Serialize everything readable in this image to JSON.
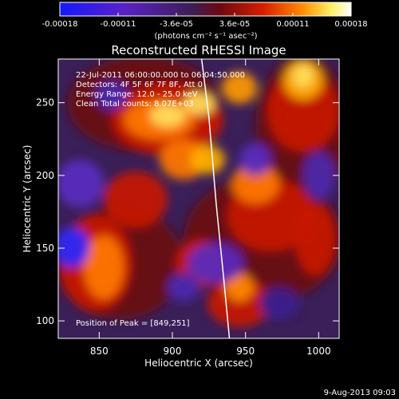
{
  "colorbar": {
    "tick_labels": [
      "-0.00018",
      "-0.00011",
      "-3.6e-05",
      "3.6e-05",
      "0.00011",
      "0.00018"
    ],
    "units": "(photons cm⁻² s⁻¹ asec⁻²)",
    "colors": [
      "#1418ff",
      "#5a20c8",
      "#3c1f55",
      "#6e0810",
      "#d91e00",
      "#ff8a00",
      "#ffef60",
      "#ffffff"
    ]
  },
  "image": {
    "title": "Reconstructed RHESSI Image",
    "info_lines": [
      "22-Jul-2011 06:00:00.000 to 06:04:50.000",
      "Detectors: 4F 5F 6F 7F 8F, Att 0",
      "Energy Range: 12.0 - 25.0 keV",
      "Clean  Total counts: 8.07E+03"
    ],
    "peak_label": "Position of Peak = [849,251]",
    "footer_date": "9-Aug-2013 09:03"
  },
  "chart_data": {
    "type": "heatmap",
    "title": "Reconstructed RHESSI Image",
    "xlabel": "Heliocentric X (arcsec)",
    "ylabel": "Heliocentric Y (arcsec)",
    "xlim": [
      822,
      1014
    ],
    "ylim": [
      88,
      280
    ],
    "x_ticks": [
      850,
      900,
      950,
      1000
    ],
    "y_ticks": [
      100,
      150,
      200,
      250
    ],
    "colorbar_range": [
      -0.00018,
      0.00018
    ],
    "peak": [
      849,
      251
    ],
    "limb_curve_x": [
      920,
      925,
      930,
      935,
      939
    ],
    "limb_curve_y": [
      280,
      240,
      180,
      130,
      88
    ]
  }
}
